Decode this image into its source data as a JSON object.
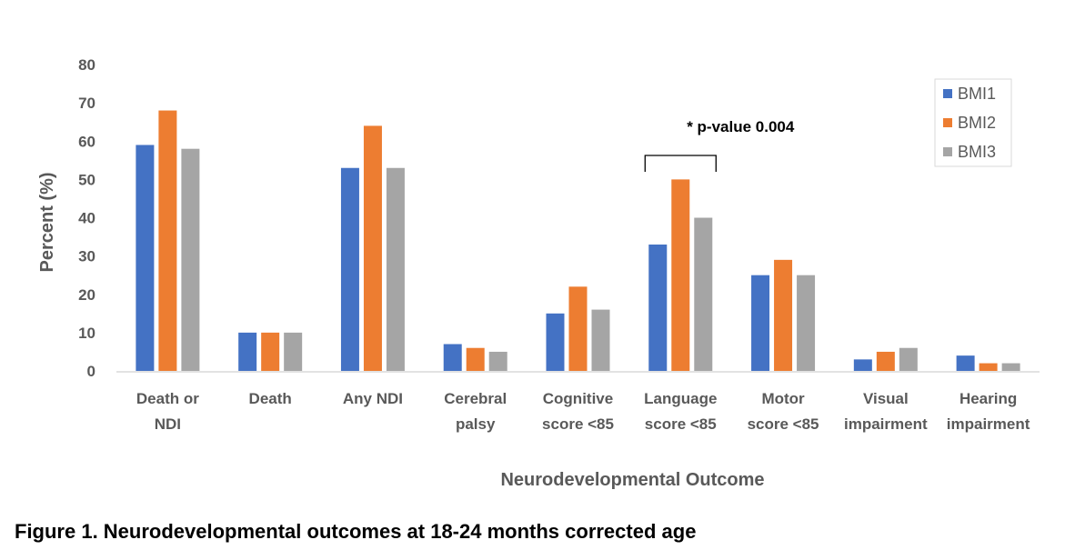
{
  "chart_data": {
    "type": "bar",
    "title": "",
    "xlabel": "Neurodevelopmental Outcome",
    "ylabel": "Percent (%)",
    "ylim": [
      0,
      80
    ],
    "yticks": [
      0,
      10,
      20,
      30,
      40,
      50,
      60,
      70,
      80
    ],
    "grid": false,
    "legend_position": "top-right",
    "categories": [
      [
        "Death or",
        "NDI"
      ],
      [
        "Death"
      ],
      [
        "Any NDI"
      ],
      [
        "Cerebral",
        "palsy"
      ],
      [
        "Cognitive",
        "score <85"
      ],
      [
        "Language",
        "score <85"
      ],
      [
        "Motor",
        "score <85"
      ],
      [
        "Visual",
        "impairment"
      ],
      [
        "Hearing",
        "impairment"
      ]
    ],
    "series": [
      {
        "name": "BMI1",
        "color": "#4472C4",
        "values": [
          59,
          10,
          53,
          7,
          15,
          33,
          25,
          3,
          4
        ]
      },
      {
        "name": "BMI2",
        "color": "#ED7D31",
        "values": [
          68,
          10,
          64,
          6,
          22,
          50,
          29,
          5,
          2
        ]
      },
      {
        "name": "BMI3",
        "color": "#A5A5A5",
        "values": [
          58,
          10,
          53,
          5,
          16,
          40,
          25,
          6,
          2
        ]
      }
    ],
    "annotations": [
      {
        "text": "* p-value 0.004",
        "category_index": 5,
        "type": "bracket"
      }
    ]
  },
  "caption": "Figure 1. Neurodevelopmental outcomes at 18-24 months corrected age"
}
